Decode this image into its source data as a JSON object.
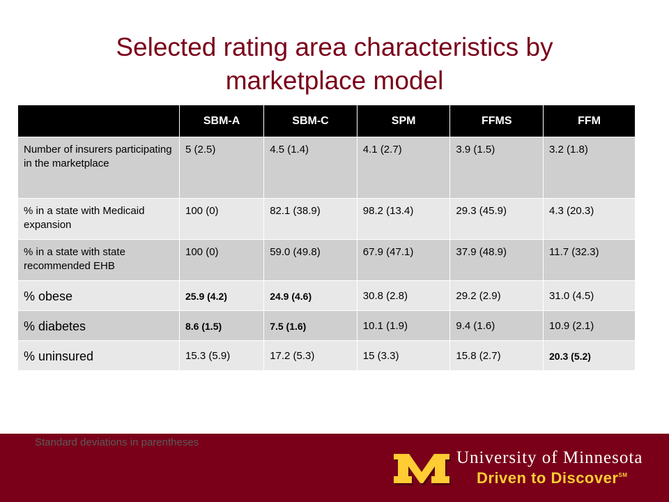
{
  "title": {
    "line1": "Selected rating area characteristics by",
    "line2": "marketplace model"
  },
  "table": {
    "headers": [
      "",
      "SBM-A",
      "SBM-C",
      "SPM",
      "FFMS",
      "FFM"
    ],
    "rows": [
      {
        "label": "Number of insurers participating in the marketplace",
        "values": [
          "5 (2.5)",
          "4.5 (1.4)",
          "4.1 (2.7)",
          "3.9 (1.5)",
          "3.2 (1.8)"
        ]
      },
      {
        "label": "% in a state with Medicaid expansion",
        "values": [
          "100 (0)",
          "82.1 (38.9)",
          "98.2 (13.4)",
          "29.3 (45.9)",
          "4.3 (20.3)"
        ]
      },
      {
        "label": "% in a state with state recommended EHB",
        "values": [
          "100 (0)",
          "59.0 (49.8)",
          "67.9 (47.1)",
          "37.9 (48.9)",
          "11.7 (32.3)"
        ]
      },
      {
        "label": "% obese",
        "values": [
          "25.9 (4.2)",
          "24.9 (4.6)",
          "30.8 (2.8)",
          "29.2 (2.9)",
          "31.0 (4.5)"
        ]
      },
      {
        "label": "% diabetes",
        "values": [
          "8.6 (1.5)",
          "7.5 (1.6)",
          "10.1 (1.9)",
          "9.4 (1.6)",
          "10.9 (2.1)"
        ]
      },
      {
        "label": "% uninsured",
        "values": [
          "15.3 (5.9)",
          "17.2 (5.3)",
          "15 (3.3)",
          "15.8 (2.7)",
          "20.3 (5.2)"
        ]
      }
    ]
  },
  "footnote": "Standard deviations in parentheses",
  "branding": {
    "university": "University of Minnesota",
    "tagline": "Driven to Discover",
    "tagline_mark": "SM",
    "colors": {
      "maroon": "#7a0019",
      "gold": "#ffcc33"
    }
  }
}
